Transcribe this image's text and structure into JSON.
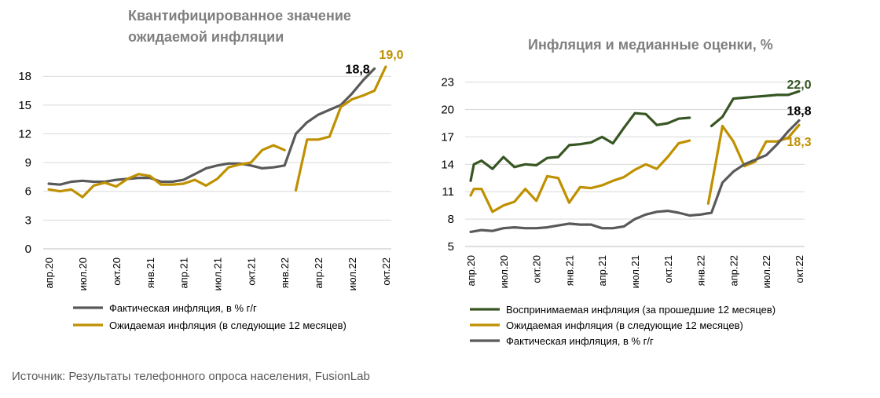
{
  "source": "Источник: Результаты телефонного опроса населения, FusionLab",
  "colors": {
    "actual": "#595959",
    "expected": "#bf9000",
    "perceived": "#375623",
    "grid": "#d9d9d9"
  },
  "chart_data": [
    {
      "type": "line",
      "title_lines": [
        "Квантифицированное значение",
        "ожидаемой инфляции"
      ],
      "xlabel": "",
      "ylabel": "",
      "ylim": [
        0,
        19
      ],
      "yticks": [
        0,
        3,
        6,
        9,
        12,
        15,
        18
      ],
      "grid": true,
      "legend_position": "bottom",
      "n_points": 31,
      "x_tick_labels": [
        {
          "i": 0,
          "label": "апр.20"
        },
        {
          "i": 3,
          "label": "июл.20"
        },
        {
          "i": 6,
          "label": "окт.20"
        },
        {
          "i": 9,
          "label": "янв.21"
        },
        {
          "i": 12,
          "label": "апр.21"
        },
        {
          "i": 15,
          "label": "июл.21"
        },
        {
          "i": 18,
          "label": "окт.21"
        },
        {
          "i": 21,
          "label": "янв.22"
        },
        {
          "i": 24,
          "label": "апр.22"
        },
        {
          "i": 27,
          "label": "июл.22"
        },
        {
          "i": 30,
          "label": "окт.22"
        }
      ],
      "series": [
        {
          "name": "Фактическая инфляция, в % г/г",
          "color_key": "actual",
          "segments": [
            [
              [
                0,
                6.8
              ],
              [
                1,
                6.7
              ],
              [
                2,
                7.0
              ],
              [
                3,
                7.1
              ],
              [
                4,
                7.0
              ],
              [
                5,
                7.0
              ],
              [
                6,
                7.2
              ],
              [
                7,
                7.3
              ],
              [
                8,
                7.4
              ],
              [
                9,
                7.4
              ],
              [
                10,
                7.0
              ],
              [
                11,
                7.0
              ],
              [
                12,
                7.2
              ],
              [
                13,
                7.8
              ],
              [
                14,
                8.4
              ],
              [
                15,
                8.7
              ],
              [
                16,
                8.9
              ],
              [
                17,
                8.9
              ],
              [
                18,
                8.7
              ],
              [
                19,
                8.4
              ],
              [
                20,
                8.5
              ],
              [
                21,
                8.7
              ],
              [
                22,
                12.0
              ],
              [
                23,
                13.2
              ],
              [
                24,
                14.0
              ],
              [
                25,
                14.5
              ],
              [
                26,
                15.0
              ],
              [
                27,
                16.2
              ],
              [
                28,
                17.6
              ],
              [
                29,
                18.8
              ]
            ]
          ]
        },
        {
          "name": "Ожидаемая инфляция (в следующие 12 месяцев)",
          "color_key": "expected",
          "segments": [
            [
              [
                0,
                6.2
              ],
              [
                1,
                6.0
              ],
              [
                2,
                6.2
              ],
              [
                3,
                5.4
              ],
              [
                4,
                6.6
              ],
              [
                5,
                6.9
              ],
              [
                6,
                6.5
              ],
              [
                7,
                7.3
              ],
              [
                8,
                7.8
              ],
              [
                9,
                7.6
              ],
              [
                10,
                6.7
              ],
              [
                11,
                6.7
              ],
              [
                12,
                6.8
              ],
              [
                13,
                7.2
              ],
              [
                14,
                6.6
              ],
              [
                15,
                7.3
              ],
              [
                16,
                8.5
              ],
              [
                17,
                8.8
              ],
              [
                18,
                9.0
              ],
              [
                19,
                10.3
              ],
              [
                20,
                10.8
              ],
              [
                21,
                10.3
              ]
            ],
            [
              [
                22,
                6.1
              ],
              [
                23,
                11.4
              ],
              [
                24,
                11.4
              ],
              [
                25,
                11.7
              ],
              [
                26,
                14.8
              ],
              [
                27,
                15.6
              ],
              [
                28,
                16.0
              ],
              [
                29,
                16.5
              ],
              [
                30,
                19.0
              ]
            ]
          ]
        }
      ],
      "annotations": [
        {
          "text": "18,8",
          "i": 27.5,
          "y": 18.8,
          "color_key": "black"
        },
        {
          "text": "19,0",
          "i": 30.5,
          "y": 20.3,
          "color_key": "expected"
        }
      ]
    },
    {
      "type": "line",
      "title_lines": [
        "Инфляция и медианные оценки, %"
      ],
      "xlabel": "",
      "ylabel": "",
      "ylim": [
        5,
        24
      ],
      "yticks": [
        5,
        8,
        11,
        14,
        17,
        20,
        23
      ],
      "grid": true,
      "legend_position": "bottom",
      "n_points": 31,
      "x_tick_labels": [
        {
          "i": 0,
          "label": "апр.20"
        },
        {
          "i": 3,
          "label": "июл.20"
        },
        {
          "i": 6,
          "label": "окт.20"
        },
        {
          "i": 9,
          "label": "янв.21"
        },
        {
          "i": 12,
          "label": "апр.21"
        },
        {
          "i": 15,
          "label": "июл.21"
        },
        {
          "i": 18,
          "label": "окт.21"
        },
        {
          "i": 21,
          "label": "янв.22"
        },
        {
          "i": 24,
          "label": "апр.22"
        },
        {
          "i": 27,
          "label": "июл.22"
        },
        {
          "i": 30,
          "label": "окт.22"
        }
      ],
      "series": [
        {
          "name": "Воспринимаемая инфляция (за прошедшие 12 месяцев)",
          "color_key": "perceived",
          "segments": [
            [
              [
                0,
                12.2
              ],
              [
                0.3,
                14.0
              ],
              [
                1,
                14.4
              ],
              [
                2,
                13.5
              ],
              [
                3,
                14.8
              ],
              [
                4,
                13.7
              ],
              [
                5,
                14.0
              ],
              [
                6,
                13.9
              ],
              [
                7,
                14.7
              ],
              [
                8,
                14.8
              ],
              [
                9,
                16.1
              ],
              [
                10,
                16.2
              ],
              [
                11,
                16.4
              ],
              [
                12,
                17.0
              ],
              [
                13,
                16.3
              ],
              [
                14,
                18.0
              ],
              [
                15,
                19.6
              ],
              [
                16,
                19.5
              ],
              [
                17,
                18.3
              ],
              [
                18,
                18.5
              ],
              [
                19,
                19.0
              ],
              [
                20,
                19.1
              ]
            ],
            [
              [
                22,
                18.2
              ],
              [
                23,
                19.2
              ],
              [
                24,
                21.2
              ],
              [
                25,
                21.3
              ],
              [
                26,
                21.4
              ],
              [
                27,
                21.5
              ],
              [
                28,
                21.6
              ],
              [
                29,
                21.6
              ],
              [
                30,
                22.0
              ]
            ]
          ]
        },
        {
          "name": "Ожидаемая инфляция (в следующие 12 месяцев)",
          "color_key": "expected",
          "segments": [
            [
              [
                0,
                10.6
              ],
              [
                0.3,
                11.3
              ],
              [
                1,
                11.3
              ],
              [
                2,
                8.8
              ],
              [
                3,
                9.5
              ],
              [
                4,
                9.9
              ],
              [
                5,
                11.3
              ],
              [
                6,
                10.0
              ],
              [
                7,
                12.7
              ],
              [
                8,
                12.5
              ],
              [
                9,
                9.8
              ],
              [
                10,
                11.5
              ],
              [
                11,
                11.4
              ],
              [
                12,
                11.7
              ],
              [
                13,
                12.2
              ],
              [
                14,
                12.6
              ],
              [
                15,
                13.4
              ],
              [
                16,
                14.0
              ],
              [
                17,
                13.5
              ],
              [
                18,
                14.8
              ],
              [
                19,
                16.3
              ],
              [
                20,
                16.6
              ]
            ],
            [
              [
                21.7,
                9.7
              ],
              [
                23,
                18.2
              ],
              [
                24,
                16.5
              ],
              [
                25,
                13.8
              ],
              [
                26,
                14.3
              ],
              [
                27,
                16.5
              ],
              [
                28,
                16.5
              ],
              [
                29,
                16.9
              ],
              [
                30,
                18.3
              ]
            ]
          ]
        },
        {
          "name": "Фактическая инфляция, в % г/г",
          "color_key": "actual",
          "segments": [
            [
              [
                0,
                6.6
              ],
              [
                1,
                6.8
              ],
              [
                2,
                6.7
              ],
              [
                3,
                7.0
              ],
              [
                4,
                7.1
              ],
              [
                5,
                7.0
              ],
              [
                6,
                7.0
              ],
              [
                7,
                7.1
              ],
              [
                8,
                7.3
              ],
              [
                9,
                7.5
              ],
              [
                10,
                7.4
              ],
              [
                11,
                7.4
              ],
              [
                12,
                7.0
              ],
              [
                13,
                7.0
              ],
              [
                14,
                7.2
              ],
              [
                15,
                8.0
              ],
              [
                16,
                8.5
              ],
              [
                17,
                8.8
              ],
              [
                18,
                8.9
              ],
              [
                19,
                8.7
              ],
              [
                20,
                8.4
              ],
              [
                21,
                8.5
              ],
              [
                22,
                8.7
              ],
              [
                23,
                12.0
              ],
              [
                24,
                13.2
              ],
              [
                25,
                14.0
              ],
              [
                26,
                14.5
              ],
              [
                27,
                15.0
              ],
              [
                28,
                16.2
              ],
              [
                29,
                17.6
              ],
              [
                30,
                18.8
              ]
            ]
          ]
        }
      ],
      "annotations": [
        {
          "text": "22,0",
          "i": 30,
          "y": 22.8,
          "color_key": "perceived"
        },
        {
          "text": "18,8",
          "i": 30,
          "y": 19.9,
          "color_key": "black"
        },
        {
          "text": "18,3",
          "i": 30,
          "y": 16.5,
          "color_key": "expected"
        }
      ]
    }
  ]
}
